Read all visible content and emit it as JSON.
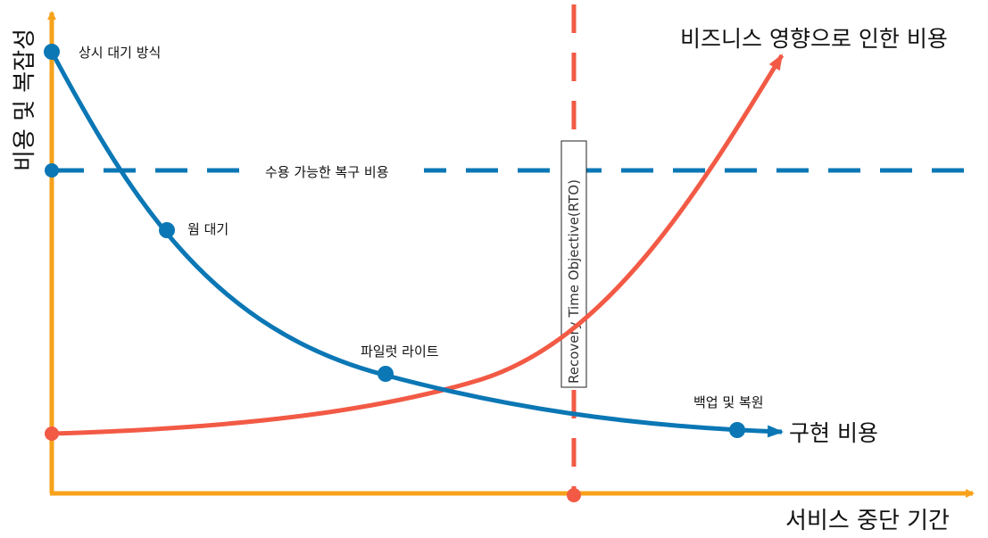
{
  "colors": {
    "axis": "#f7a21b",
    "implementation_curve": "#0b77b5",
    "business_curve": "#f25a45",
    "rto_line": "#f25a45",
    "acceptable_line": "#0b77b5",
    "label_text": "#111111"
  },
  "axes": {
    "y_label": "비용 및 복잡성",
    "x_label": "서비스 중단 기간"
  },
  "curves": {
    "implementation_cost_label": "구현 비용",
    "business_impact_label": "비즈니스 영향으로 인한 비용"
  },
  "strategies": [
    {
      "id": "multi-site",
      "label": "상시 대기 방식"
    },
    {
      "id": "warm-standby",
      "label": "웜 대기"
    },
    {
      "id": "pilot-light",
      "label": "파일럿 라이트"
    },
    {
      "id": "backup-restore",
      "label": "백업 및 복원"
    }
  ],
  "acceptable_cost_label": "수용 가능한 복구 비용",
  "rto_label": "Recovery Time Objective(RTO)"
}
